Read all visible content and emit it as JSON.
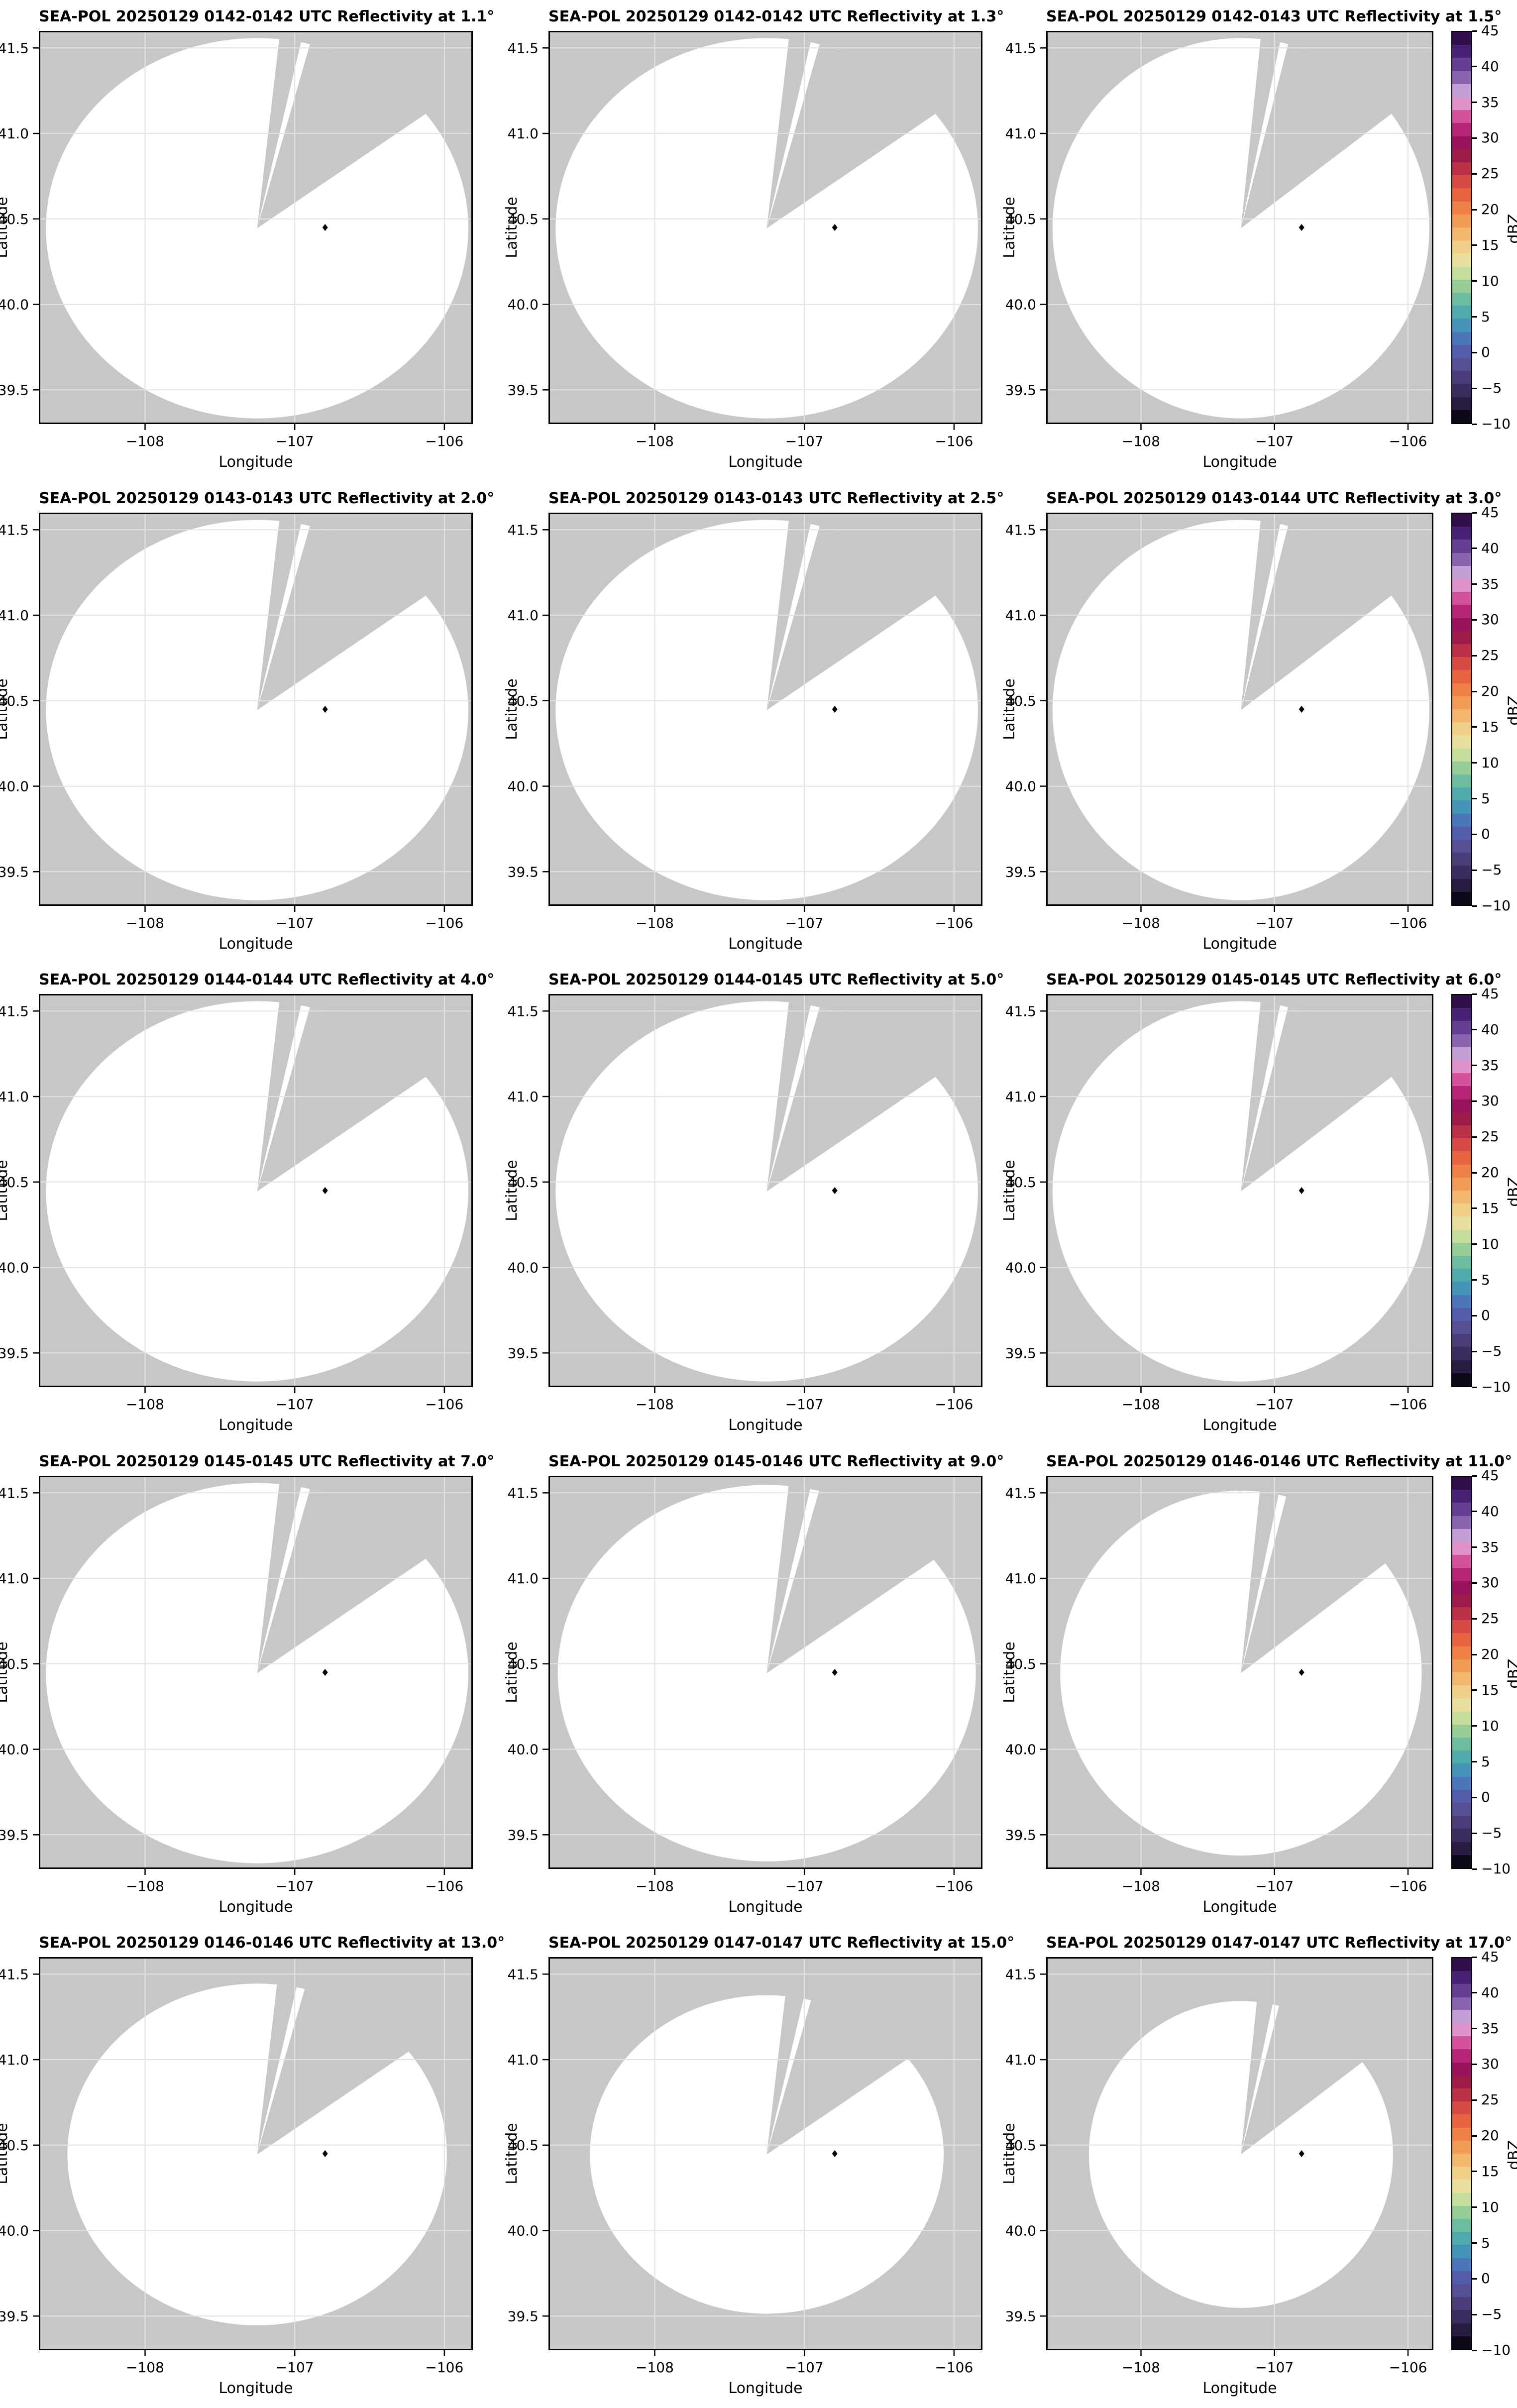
{
  "figure": {
    "background": "#ffffff",
    "axes_background": "#c7c7c7",
    "coverage_fill": "#ffffff",
    "gridline_color": "#e3e3e3",
    "border_color": "#000000",
    "marker_color": "#000000"
  },
  "chart_data": {
    "type": "heatmap",
    "subtype": "radar-ppi-grid",
    "grid": {
      "rows": 5,
      "cols": 3
    },
    "axes": {
      "xlabel": "Longitude",
      "ylabel": "Latitude",
      "xlim": [
        -108.71,
        -105.81
      ],
      "ylim": [
        39.3,
        41.6
      ],
      "xticks": [
        -108,
        -107,
        -106
      ],
      "xtick_labels": [
        "−108",
        "−107",
        "−106"
      ],
      "yticks": [
        39.5,
        40.0,
        40.5,
        41.0,
        41.5
      ],
      "ytick_labels": [
        "39.5",
        "40.0",
        "40.5",
        "41.0",
        "41.5"
      ],
      "grid": true
    },
    "geometry": {
      "radar_center": {
        "lon": -107.26,
        "lat": 40.45
      },
      "site_marker": {
        "lon": -106.797,
        "lat": 40.45,
        "shape": "diamond"
      },
      "blocked_sectors_azimuth_deg": [
        {
          "from": 6,
          "to": 12
        },
        {
          "from": 14.5,
          "to": 53
        }
      ]
    },
    "colorbar": {
      "label": "dBZ",
      "vmin": -10,
      "vmax": 45,
      "ticks": [
        45,
        40,
        35,
        30,
        25,
        20,
        15,
        10,
        5,
        0,
        -5,
        -10
      ],
      "tick_labels": [
        "45",
        "40",
        "35",
        "30",
        "25",
        "20",
        "15",
        "10",
        "5",
        "0",
        "−5",
        "−10"
      ],
      "colors_top_to_bottom": [
        "#2f0e4a",
        "#472173",
        "#654092",
        "#8a64ae",
        "#c49fd6",
        "#e093cb",
        "#d4519b",
        "#b52475",
        "#98125c",
        "#9c1b49",
        "#bb3146",
        "#d54a42",
        "#e66540",
        "#ee8146",
        "#f19c55",
        "#f2b76c",
        "#f0cf88",
        "#e8df9e",
        "#c5dd9b",
        "#97cd97",
        "#6dbda0",
        "#50abad",
        "#4593b8",
        "#4b77ba",
        "#535dab",
        "#564f94",
        "#4a3d7a",
        "#3a2c5e",
        "#281d40",
        "#0e0918"
      ]
    },
    "panels": [
      {
        "title": "SEA-POL 20250129 0142-0142 UTC Reflectivity at 1.1°",
        "time_utc": "0142-0142",
        "elevation_deg": 1.1,
        "coverage_radius_frac": 0.985
      },
      {
        "title": "SEA-POL 20250129 0142-0142 UTC Reflectivity at 1.3°",
        "time_utc": "0142-0142",
        "elevation_deg": 1.3,
        "coverage_radius_frac": 0.985
      },
      {
        "title": "SEA-POL 20250129 0142-0143 UTC Reflectivity at 1.5°",
        "time_utc": "0142-0143",
        "elevation_deg": 1.5,
        "coverage_radius_frac": 0.985
      },
      {
        "title": "SEA-POL 20250129 0143-0143 UTC Reflectivity at 2.0°",
        "time_utc": "0143-0143",
        "elevation_deg": 2.0,
        "coverage_radius_frac": 0.985
      },
      {
        "title": "SEA-POL 20250129 0143-0143 UTC Reflectivity at 2.5°",
        "time_utc": "0143-0143",
        "elevation_deg": 2.5,
        "coverage_radius_frac": 0.985
      },
      {
        "title": "SEA-POL 20250129 0143-0144 UTC Reflectivity at 3.0°",
        "time_utc": "0143-0144",
        "elevation_deg": 3.0,
        "coverage_radius_frac": 0.985
      },
      {
        "title": "SEA-POL 20250129 0144-0144 UTC Reflectivity at 4.0°",
        "time_utc": "0144-0144",
        "elevation_deg": 4.0,
        "coverage_radius_frac": 0.985
      },
      {
        "title": "SEA-POL 20250129 0144-0145 UTC Reflectivity at 5.0°",
        "time_utc": "0144-0145",
        "elevation_deg": 5.0,
        "coverage_radius_frac": 0.985
      },
      {
        "title": "SEA-POL 20250129 0145-0145 UTC Reflectivity at 6.0°",
        "time_utc": "0145-0145",
        "elevation_deg": 6.0,
        "coverage_radius_frac": 0.985
      },
      {
        "title": "SEA-POL 20250129 0145-0145 UTC Reflectivity at 7.0°",
        "time_utc": "0145-0145",
        "elevation_deg": 7.0,
        "coverage_radius_frac": 0.985
      },
      {
        "title": "SEA-POL 20250129 0145-0146 UTC Reflectivity at 9.0°",
        "time_utc": "0145-0146",
        "elevation_deg": 9.0,
        "coverage_radius_frac": 0.975
      },
      {
        "title": "SEA-POL 20250129 0146-0146 UTC Reflectivity at 11.0°",
        "time_utc": "0146-0146",
        "elevation_deg": 11.0,
        "coverage_radius_frac": 0.945
      },
      {
        "title": "SEA-POL 20250129 0146-0146 UTC Reflectivity at 13.0°",
        "time_utc": "0146-0146",
        "elevation_deg": 13.0,
        "coverage_radius_frac": 0.885
      },
      {
        "title": "SEA-POL 20250129 0147-0147 UTC Reflectivity at 15.0°",
        "time_utc": "0147-0147",
        "elevation_deg": 15.0,
        "coverage_radius_frac": 0.825
      },
      {
        "title": "SEA-POL 20250129 0147-0147 UTC Reflectivity at 17.0°",
        "time_utc": "0147-0147",
        "elevation_deg": 17.0,
        "coverage_radius_frac": 0.795
      }
    ]
  }
}
